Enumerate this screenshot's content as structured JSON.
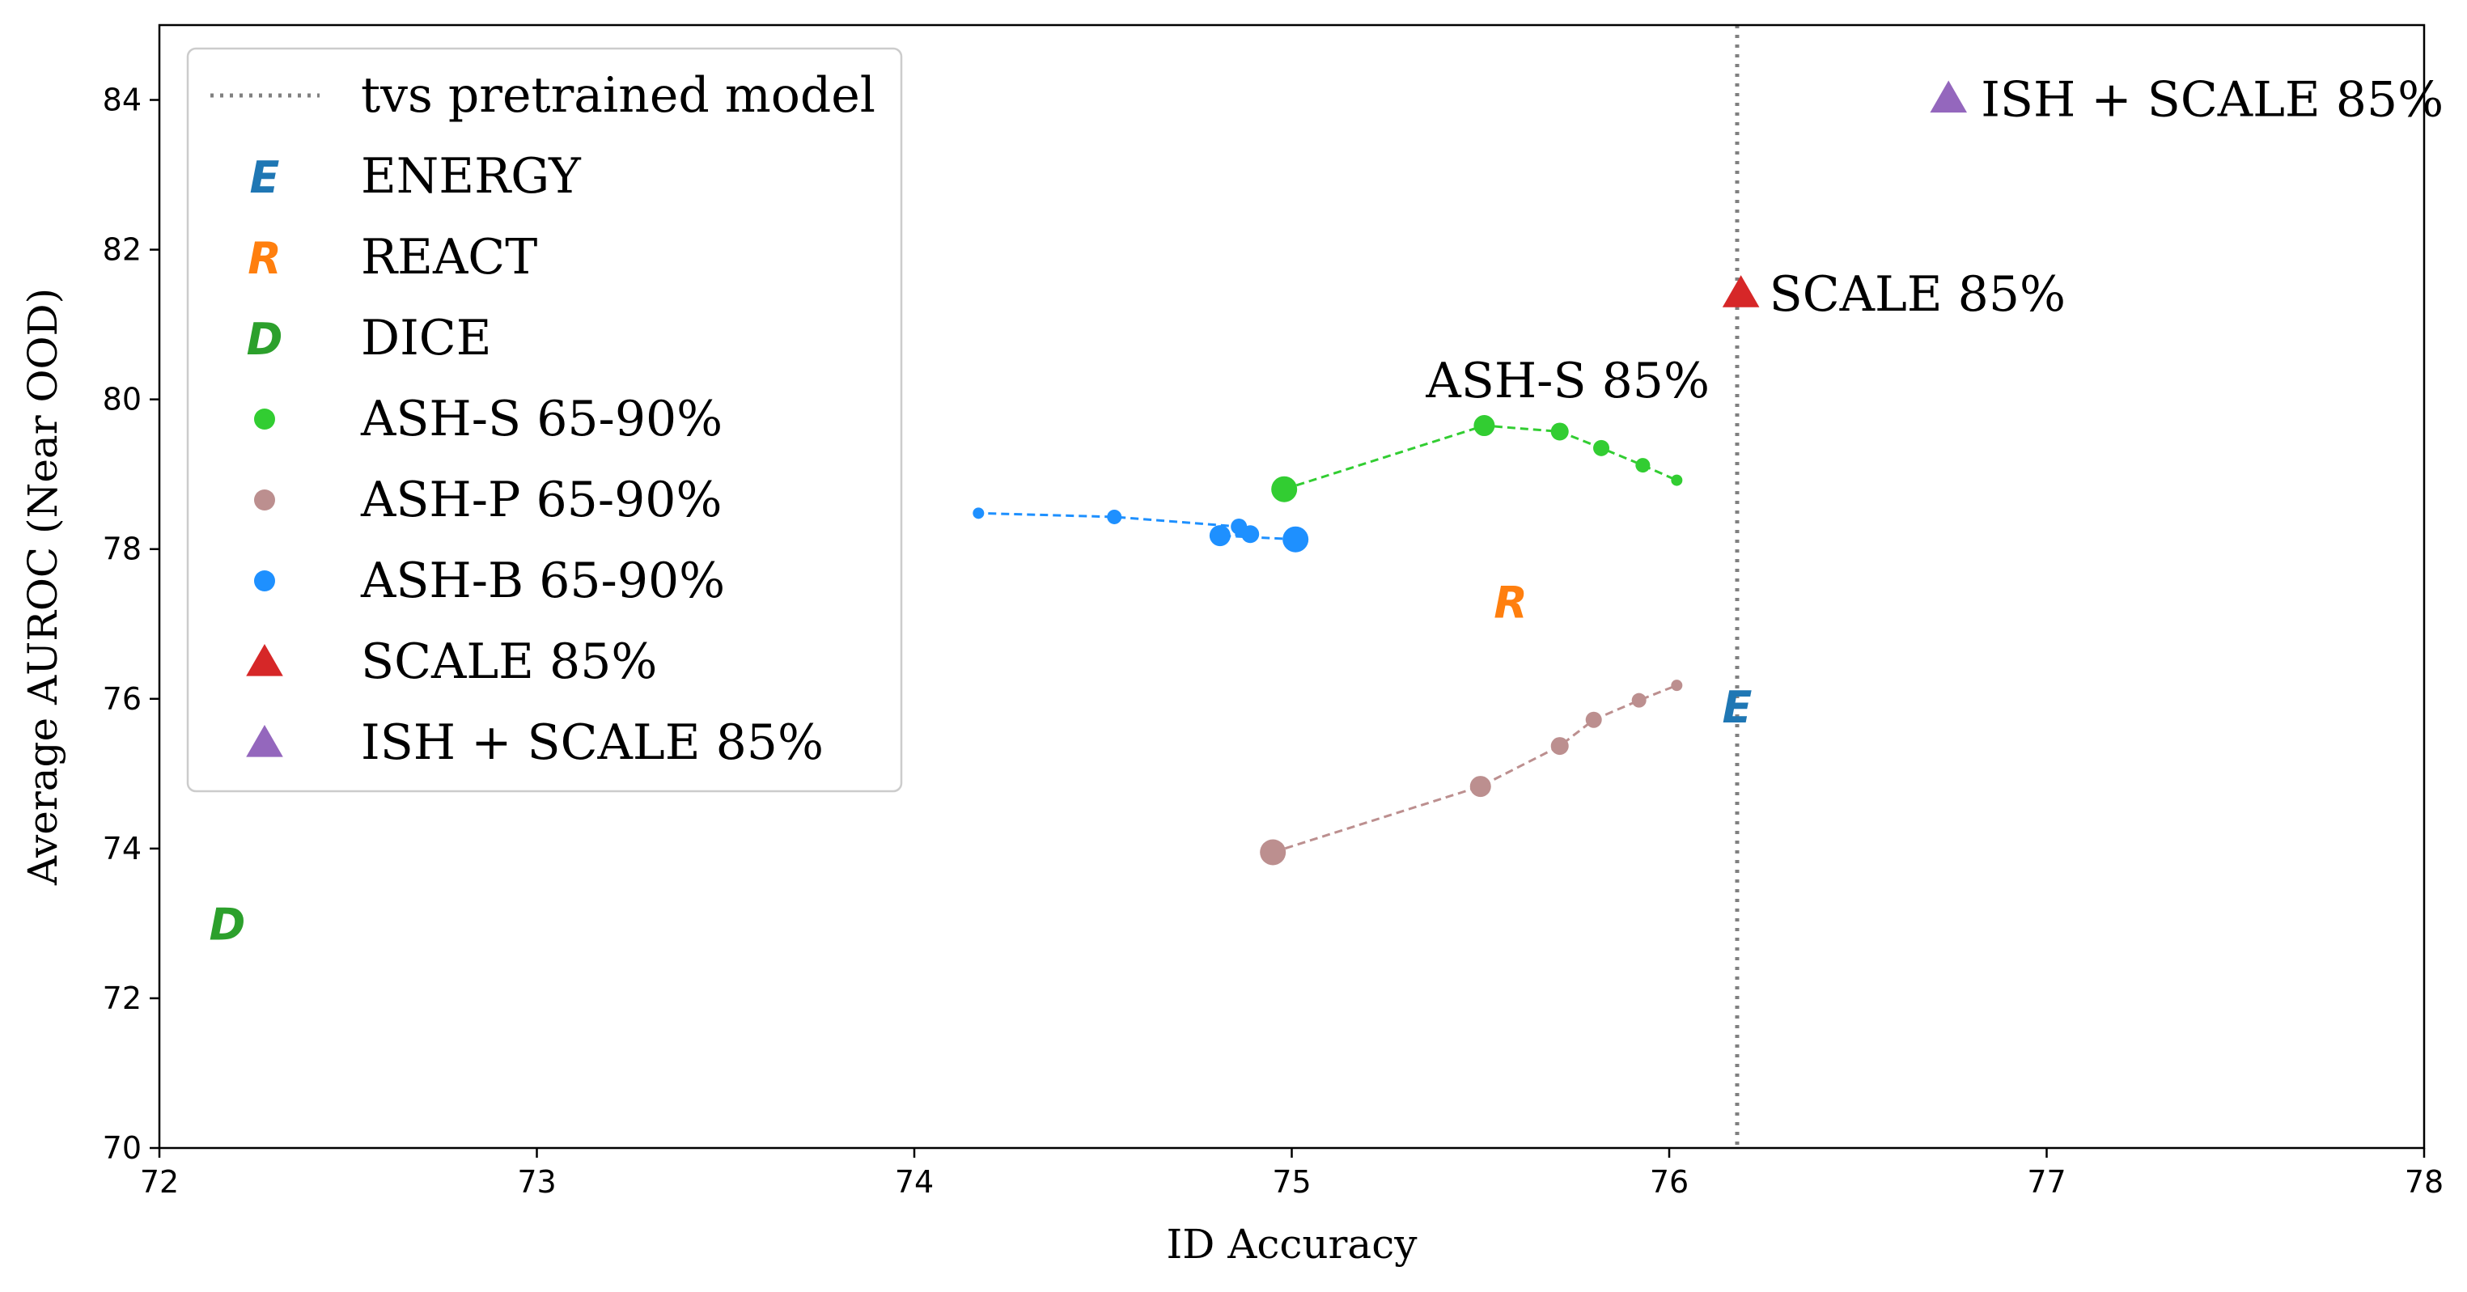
{
  "chart_data": {
    "type": "scatter",
    "title": "",
    "xlabel": "ID Accuracy",
    "ylabel": "Average AUROC (Near OOD)",
    "xlim": [
      72,
      78
    ],
    "ylim": [
      70,
      85
    ],
    "xticks": [
      72,
      73,
      74,
      75,
      76,
      77,
      78
    ],
    "yticks": [
      70,
      72,
      74,
      76,
      78,
      80,
      82,
      84
    ],
    "grid": false,
    "legend_position": "top-left",
    "reference_line": {
      "name": "tvs pretrained model",
      "x": 76.18,
      "color": "#808080",
      "style": "dotted"
    },
    "letter_markers": [
      {
        "name": "ENERGY",
        "letter": "E",
        "x": 76.18,
        "y": 75.9,
        "color": "#1f77b4"
      },
      {
        "name": "REACT",
        "letter": "R",
        "x": 75.58,
        "y": 77.3,
        "color": "#ff7f0e"
      },
      {
        "name": "DICE",
        "letter": "D",
        "x": 72.18,
        "y": 73.0,
        "color": "#2ca02c"
      }
    ],
    "series": [
      {
        "name": "ASH-S 65-90%",
        "color": "#32cd32",
        "points": [
          {
            "x": 74.98,
            "y": 78.8
          },
          {
            "x": 75.51,
            "y": 79.65
          },
          {
            "x": 75.71,
            "y": 79.57
          },
          {
            "x": 75.82,
            "y": 79.35
          },
          {
            "x": 75.93,
            "y": 79.12
          },
          {
            "x": 76.02,
            "y": 78.92
          }
        ]
      },
      {
        "name": "ASH-P 65-90%",
        "color": "#bc8f8f",
        "points": [
          {
            "x": 74.95,
            "y": 73.95
          },
          {
            "x": 75.5,
            "y": 74.83
          },
          {
            "x": 75.71,
            "y": 75.37
          },
          {
            "x": 75.8,
            "y": 75.72
          },
          {
            "x": 75.92,
            "y": 75.98
          },
          {
            "x": 76.02,
            "y": 76.18
          }
        ]
      },
      {
        "name": "ASH-B 65-90%",
        "color": "#1e90ff",
        "points": [
          {
            "x": 75.01,
            "y": 78.13
          },
          {
            "x": 74.81,
            "y": 78.18
          },
          {
            "x": 74.89,
            "y": 78.2
          },
          {
            "x": 74.86,
            "y": 78.3
          },
          {
            "x": 74.53,
            "y": 78.43
          },
          {
            "x": 74.17,
            "y": 78.48
          }
        ]
      }
    ],
    "triangles": [
      {
        "name": "SCALE 85%",
        "x": 76.19,
        "y": 81.4,
        "color": "#d62728"
      },
      {
        "name": "ISH + SCALE 85%",
        "x": 76.74,
        "y": 84.0,
        "color": "#9467bd"
      }
    ],
    "annotations": [
      {
        "text": "ASH-S 85%",
        "x": 75.51,
        "y": 79.65
      },
      {
        "text": "SCALE 85%",
        "x": 76.19,
        "y": 81.4
      },
      {
        "text": "ISH + SCALE 85%",
        "x": 76.74,
        "y": 84.0
      }
    ]
  }
}
